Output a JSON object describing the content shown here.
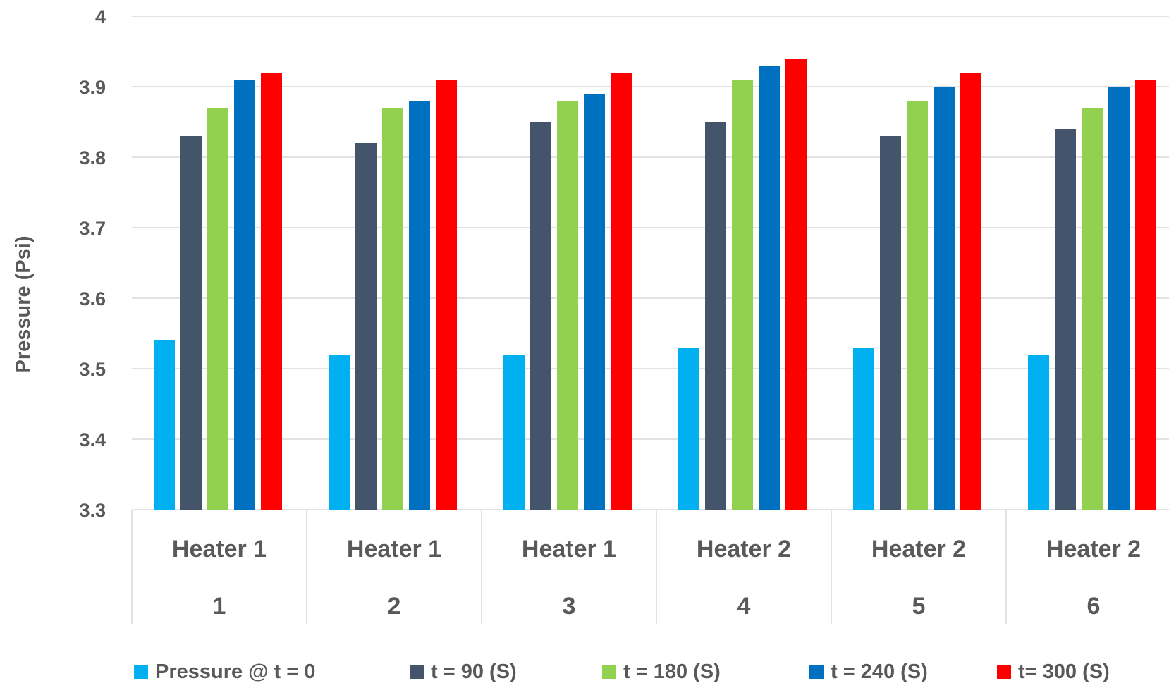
{
  "chart_data": {
    "type": "bar",
    "title": "",
    "xlabel": "",
    "ylabel": "Pressure (Psi)",
    "ylim": [
      3.3,
      4.0
    ],
    "yticks": [
      "3.3",
      "3.4",
      "3.5",
      "3.6",
      "3.7",
      "3.8",
      "3.9",
      "4"
    ],
    "grid": true,
    "legend_position": "bottom",
    "categories": [
      {
        "group": "Heater 1",
        "label": "1"
      },
      {
        "group": "Heater 1",
        "label": "2"
      },
      {
        "group": "Heater 1",
        "label": "3"
      },
      {
        "group": "Heater 2",
        "label": "4"
      },
      {
        "group": "Heater 2",
        "label": "5"
      },
      {
        "group": "Heater 2",
        "label": "6"
      }
    ],
    "series": [
      {
        "name": "Pressure @ t = 0",
        "color": "#00B0F0",
        "values": [
          3.54,
          3.52,
          3.52,
          3.53,
          3.53,
          3.52
        ]
      },
      {
        "name": "t = 90 (S)",
        "color": "#44546A",
        "values": [
          3.83,
          3.82,
          3.85,
          3.85,
          3.83,
          3.84
        ]
      },
      {
        "name": "t = 180 (S)",
        "color": "#92D050",
        "values": [
          3.87,
          3.87,
          3.88,
          3.91,
          3.88,
          3.87
        ]
      },
      {
        "name": "t = 240 (S)",
        "color": "#0070C0",
        "values": [
          3.91,
          3.88,
          3.89,
          3.93,
          3.9,
          3.9
        ]
      },
      {
        "name": "t= 300 (S)",
        "color": "#FF0000",
        "values": [
          3.92,
          3.91,
          3.92,
          3.94,
          3.92,
          3.91
        ]
      }
    ]
  }
}
